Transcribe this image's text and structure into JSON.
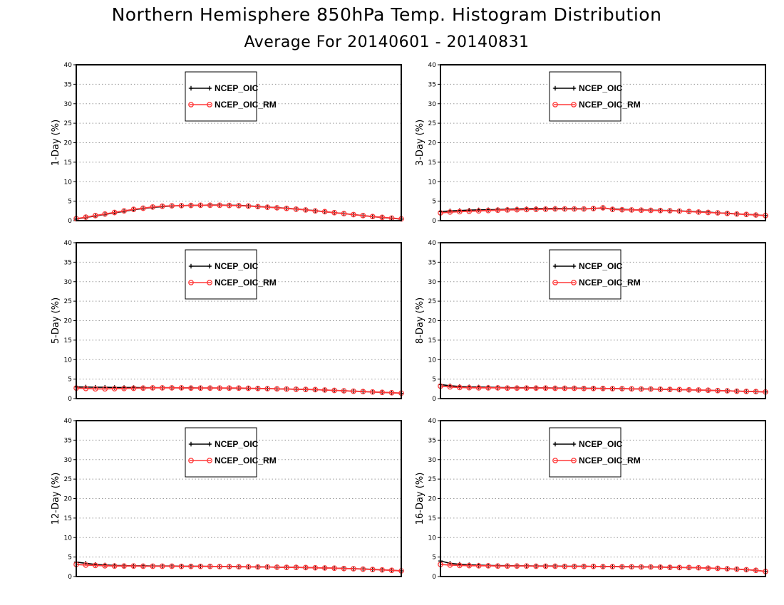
{
  "title": "Northern Hemisphere 850hPa Temp. Histogram Distribution",
  "subtitle": "Average For 20140601 - 20140831",
  "colors": {
    "obs": "#000000",
    "model": "#ff3a3a"
  },
  "chart_data": [
    {
      "type": "line",
      "ylabel": "1-Day (%)",
      "ylim": [
        0,
        40
      ],
      "yticks": [
        0,
        5,
        10,
        15,
        20,
        25,
        30,
        35,
        40
      ],
      "grid": true,
      "legend_position": "top-left-inside",
      "series": [
        {
          "name": "NCEP_OIC",
          "marker": "plus",
          "values": [
            0.4,
            0.8,
            1.2,
            1.6,
            2.0,
            2.4,
            2.8,
            3.1,
            3.4,
            3.6,
            3.75,
            3.85,
            3.9,
            3.95,
            4.0,
            4.0,
            3.95,
            3.9,
            3.8,
            3.65,
            3.5,
            3.35,
            3.2,
            3.0,
            2.8,
            2.55,
            2.3,
            2.05,
            1.8,
            1.55,
            1.3,
            1.05,
            0.8,
            0.6,
            0.4
          ]
        },
        {
          "name": "NCEP_OIC_RM",
          "marker": "circle",
          "values": [
            0.5,
            0.9,
            1.3,
            1.7,
            2.1,
            2.5,
            2.9,
            3.2,
            3.5,
            3.7,
            3.8,
            3.85,
            3.9,
            3.95,
            3.95,
            3.95,
            3.9,
            3.85,
            3.75,
            3.6,
            3.45,
            3.3,
            3.15,
            2.95,
            2.75,
            2.5,
            2.3,
            2.05,
            1.8,
            1.55,
            1.3,
            1.05,
            0.85,
            0.65,
            0.45
          ]
        }
      ]
    },
    {
      "type": "line",
      "ylabel": "3-Day (%)",
      "ylim": [
        0,
        40
      ],
      "yticks": [
        0,
        5,
        10,
        15,
        20,
        25,
        30,
        35,
        40
      ],
      "grid": true,
      "legend_position": "top-left-inside",
      "series": [
        {
          "name": "NCEP_OIC",
          "marker": "plus",
          "values": [
            2.3,
            2.5,
            2.6,
            2.7,
            2.75,
            2.8,
            2.85,
            2.9,
            3.0,
            3.05,
            3.1,
            3.1,
            3.15,
            3.1,
            3.1,
            3.05,
            3.1,
            3.2,
            3.0,
            2.9,
            2.8,
            2.75,
            2.7,
            2.65,
            2.6,
            2.5,
            2.4,
            2.3,
            2.2,
            2.0,
            1.9,
            1.75,
            1.6,
            1.5,
            1.3
          ]
        },
        {
          "name": "NCEP_OIC_RM",
          "marker": "circle",
          "values": [
            2.0,
            2.2,
            2.3,
            2.4,
            2.5,
            2.6,
            2.7,
            2.75,
            2.8,
            2.85,
            2.9,
            2.95,
            3.0,
            3.0,
            3.0,
            3.0,
            3.1,
            3.3,
            2.9,
            2.8,
            2.75,
            2.7,
            2.65,
            2.6,
            2.55,
            2.45,
            2.35,
            2.2,
            2.1,
            2.0,
            1.85,
            1.7,
            1.6,
            1.45,
            1.3
          ]
        }
      ]
    },
    {
      "type": "line",
      "ylabel": "5-Day (%)",
      "ylim": [
        0,
        40
      ],
      "yticks": [
        0,
        5,
        10,
        15,
        20,
        25,
        30,
        35,
        40
      ],
      "grid": true,
      "legend_position": "top-left-inside",
      "series": [
        {
          "name": "NCEP_OIC",
          "marker": "plus",
          "values": [
            3.0,
            2.95,
            2.9,
            2.9,
            2.85,
            2.85,
            2.85,
            2.8,
            2.8,
            2.8,
            2.8,
            2.75,
            2.75,
            2.7,
            2.7,
            2.7,
            2.65,
            2.65,
            2.6,
            2.6,
            2.55,
            2.5,
            2.45,
            2.4,
            2.35,
            2.3,
            2.2,
            2.1,
            2.0,
            1.9,
            1.8,
            1.7,
            1.6,
            1.5,
            1.35
          ]
        },
        {
          "name": "NCEP_OIC_RM",
          "marker": "circle",
          "values": [
            2.7,
            2.6,
            2.5,
            2.5,
            2.55,
            2.6,
            2.65,
            2.7,
            2.75,
            2.75,
            2.75,
            2.75,
            2.7,
            2.7,
            2.7,
            2.7,
            2.7,
            2.7,
            2.65,
            2.6,
            2.55,
            2.5,
            2.45,
            2.4,
            2.35,
            2.3,
            2.2,
            2.1,
            2.0,
            1.9,
            1.8,
            1.7,
            1.6,
            1.5,
            1.4
          ]
        }
      ]
    },
    {
      "type": "line",
      "ylabel": "8-Day (%)",
      "ylim": [
        0,
        40
      ],
      "yticks": [
        0,
        5,
        10,
        15,
        20,
        25,
        30,
        35,
        40
      ],
      "grid": true,
      "legend_position": "top-left-inside",
      "series": [
        {
          "name": "NCEP_OIC",
          "marker": "plus",
          "values": [
            3.6,
            3.3,
            3.1,
            3.0,
            2.95,
            2.9,
            2.85,
            2.8,
            2.8,
            2.8,
            2.75,
            2.75,
            2.7,
            2.7,
            2.7,
            2.65,
            2.65,
            2.6,
            2.6,
            2.55,
            2.5,
            2.5,
            2.45,
            2.4,
            2.35,
            2.3,
            2.25,
            2.2,
            2.1,
            2.05,
            2.0,
            1.9,
            1.85,
            1.8,
            1.7
          ]
        },
        {
          "name": "NCEP_OIC_RM",
          "marker": "circle",
          "values": [
            3.2,
            3.0,
            2.85,
            2.8,
            2.75,
            2.75,
            2.75,
            2.7,
            2.7,
            2.7,
            2.7,
            2.7,
            2.65,
            2.65,
            2.65,
            2.6,
            2.6,
            2.6,
            2.55,
            2.55,
            2.5,
            2.45,
            2.45,
            2.4,
            2.35,
            2.3,
            2.25,
            2.2,
            2.15,
            2.05,
            2.0,
            1.9,
            1.85,
            1.8,
            1.7
          ]
        }
      ]
    },
    {
      "type": "line",
      "ylabel": "12-Day (%)",
      "ylim": [
        0,
        40
      ],
      "yticks": [
        0,
        5,
        10,
        15,
        20,
        25,
        30,
        35,
        40
      ],
      "grid": true,
      "legend_position": "top-left-inside",
      "series": [
        {
          "name": "NCEP_OIC",
          "marker": "plus",
          "values": [
            3.7,
            3.4,
            3.1,
            2.95,
            2.85,
            2.8,
            2.75,
            2.75,
            2.7,
            2.7,
            2.7,
            2.65,
            2.65,
            2.65,
            2.6,
            2.6,
            2.6,
            2.55,
            2.5,
            2.5,
            2.45,
            2.4,
            2.4,
            2.35,
            2.3,
            2.25,
            2.2,
            2.15,
            2.1,
            2.0,
            1.95,
            1.85,
            1.75,
            1.6,
            1.45
          ]
        },
        {
          "name": "NCEP_OIC_RM",
          "marker": "circle",
          "values": [
            3.1,
            2.95,
            2.85,
            2.75,
            2.7,
            2.7,
            2.7,
            2.65,
            2.65,
            2.65,
            2.65,
            2.6,
            2.6,
            2.6,
            2.6,
            2.55,
            2.55,
            2.5,
            2.5,
            2.45,
            2.45,
            2.4,
            2.35,
            2.35,
            2.3,
            2.25,
            2.2,
            2.15,
            2.05,
            2.0,
            1.9,
            1.8,
            1.7,
            1.6,
            1.45
          ]
        }
      ]
    },
    {
      "type": "line",
      "ylabel": "16-Day (%)",
      "ylim": [
        0,
        40
      ],
      "yticks": [
        0,
        5,
        10,
        15,
        20,
        25,
        30,
        35,
        40
      ],
      "grid": true,
      "legend_position": "top-left-inside",
      "series": [
        {
          "name": "NCEP_OIC",
          "marker": "plus",
          "values": [
            4.0,
            3.4,
            3.15,
            3.0,
            2.9,
            2.85,
            2.8,
            2.8,
            2.75,
            2.75,
            2.7,
            2.7,
            2.7,
            2.65,
            2.65,
            2.65,
            2.6,
            2.6,
            2.6,
            2.55,
            2.55,
            2.5,
            2.45,
            2.45,
            2.4,
            2.35,
            2.3,
            2.25,
            2.2,
            2.1,
            2.0,
            1.9,
            1.75,
            1.6,
            1.3
          ]
        },
        {
          "name": "NCEP_OIC_RM",
          "marker": "circle",
          "values": [
            3.1,
            2.95,
            2.85,
            2.8,
            2.75,
            2.75,
            2.7,
            2.7,
            2.7,
            2.7,
            2.65,
            2.65,
            2.65,
            2.6,
            2.6,
            2.6,
            2.6,
            2.55,
            2.55,
            2.5,
            2.5,
            2.45,
            2.45,
            2.4,
            2.35,
            2.3,
            2.3,
            2.25,
            2.15,
            2.1,
            2.0,
            1.9,
            1.75,
            1.6,
            1.3
          ]
        }
      ]
    }
  ]
}
